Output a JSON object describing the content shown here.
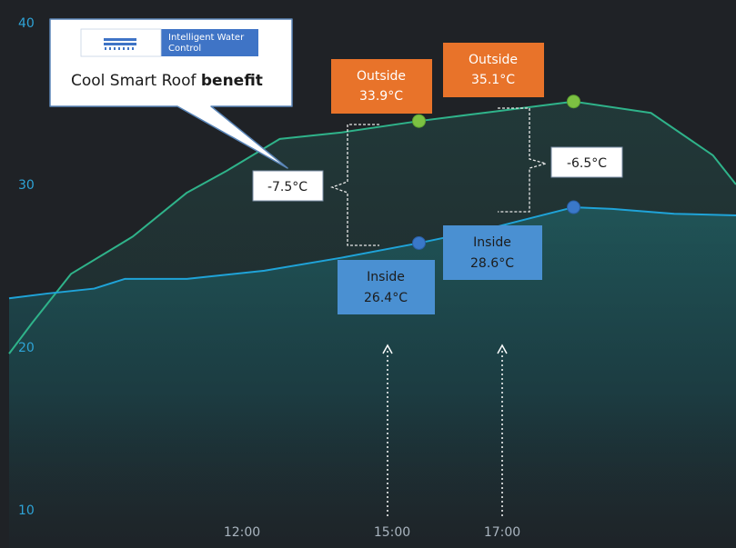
{
  "chart_data": {
    "type": "line",
    "title": "",
    "xlabel": "",
    "ylabel": "",
    "ylim": [
      10,
      40
    ],
    "yticks": [
      "40",
      "30",
      "20",
      "10"
    ],
    "xticks": [
      "12:00",
      "15:00",
      "17:00"
    ],
    "xlim_hours": [
      9.7,
      19.1
    ],
    "grid": false,
    "series": [
      {
        "name": "Outside",
        "color": "#2fb38a",
        "x": [
          9.7,
          10.0,
          10.5,
          11.3,
          12.0,
          12.5,
          13.2,
          14.0,
          15.0,
          16.0,
          17.0,
          18.0,
          18.8,
          19.1
        ],
        "values": [
          19.6,
          21.5,
          24.5,
          26.8,
          29.5,
          30.8,
          32.8,
          33.2,
          33.9,
          34.5,
          35.1,
          34.4,
          31.8,
          30.0
        ]
      },
      {
        "name": "Inside",
        "color": "#1fa3d8",
        "x": [
          9.7,
          10.2,
          10.8,
          11.2,
          12.0,
          13.0,
          14.0,
          15.0,
          16.0,
          17.0,
          17.5,
          18.3,
          19.1
        ],
        "values": [
          23.0,
          23.3,
          23.6,
          24.2,
          24.2,
          24.7,
          25.5,
          26.4,
          27.4,
          28.6,
          28.5,
          28.2,
          28.1
        ]
      }
    ],
    "annotations": [
      {
        "label": "Outside",
        "value": "33.9°C",
        "x": 15.0,
        "y": 33.9,
        "color": "#e8732a"
      },
      {
        "label": "Outside",
        "value": "35.1°C",
        "x": 17.0,
        "y": 35.1,
        "color": "#e8732a"
      },
      {
        "label": "Inside",
        "value": "26.4°C",
        "x": 15.0,
        "y": 26.4,
        "color": "#4a90d2"
      },
      {
        "label": "Inside",
        "value": "28.6°C",
        "x": 17.0,
        "y": 28.6,
        "color": "#4a90d2"
      },
      {
        "label": "-7.5°C",
        "at": 15.0
      },
      {
        "label": "-6.5°C",
        "at": 17.0
      }
    ]
  },
  "callout": {
    "logo_line1": "Intelligent Water",
    "logo_line2": "Control",
    "text_regular": "Cool Smart Roof ",
    "text_bold": "benefit"
  },
  "colors": {
    "background": "#1f2226",
    "outside_line": "#2fb38a",
    "inside_line": "#1fa3d8",
    "outside_label": "#e8732a",
    "inside_label": "#4a90d2",
    "logo_blue": "#3f74c6"
  }
}
